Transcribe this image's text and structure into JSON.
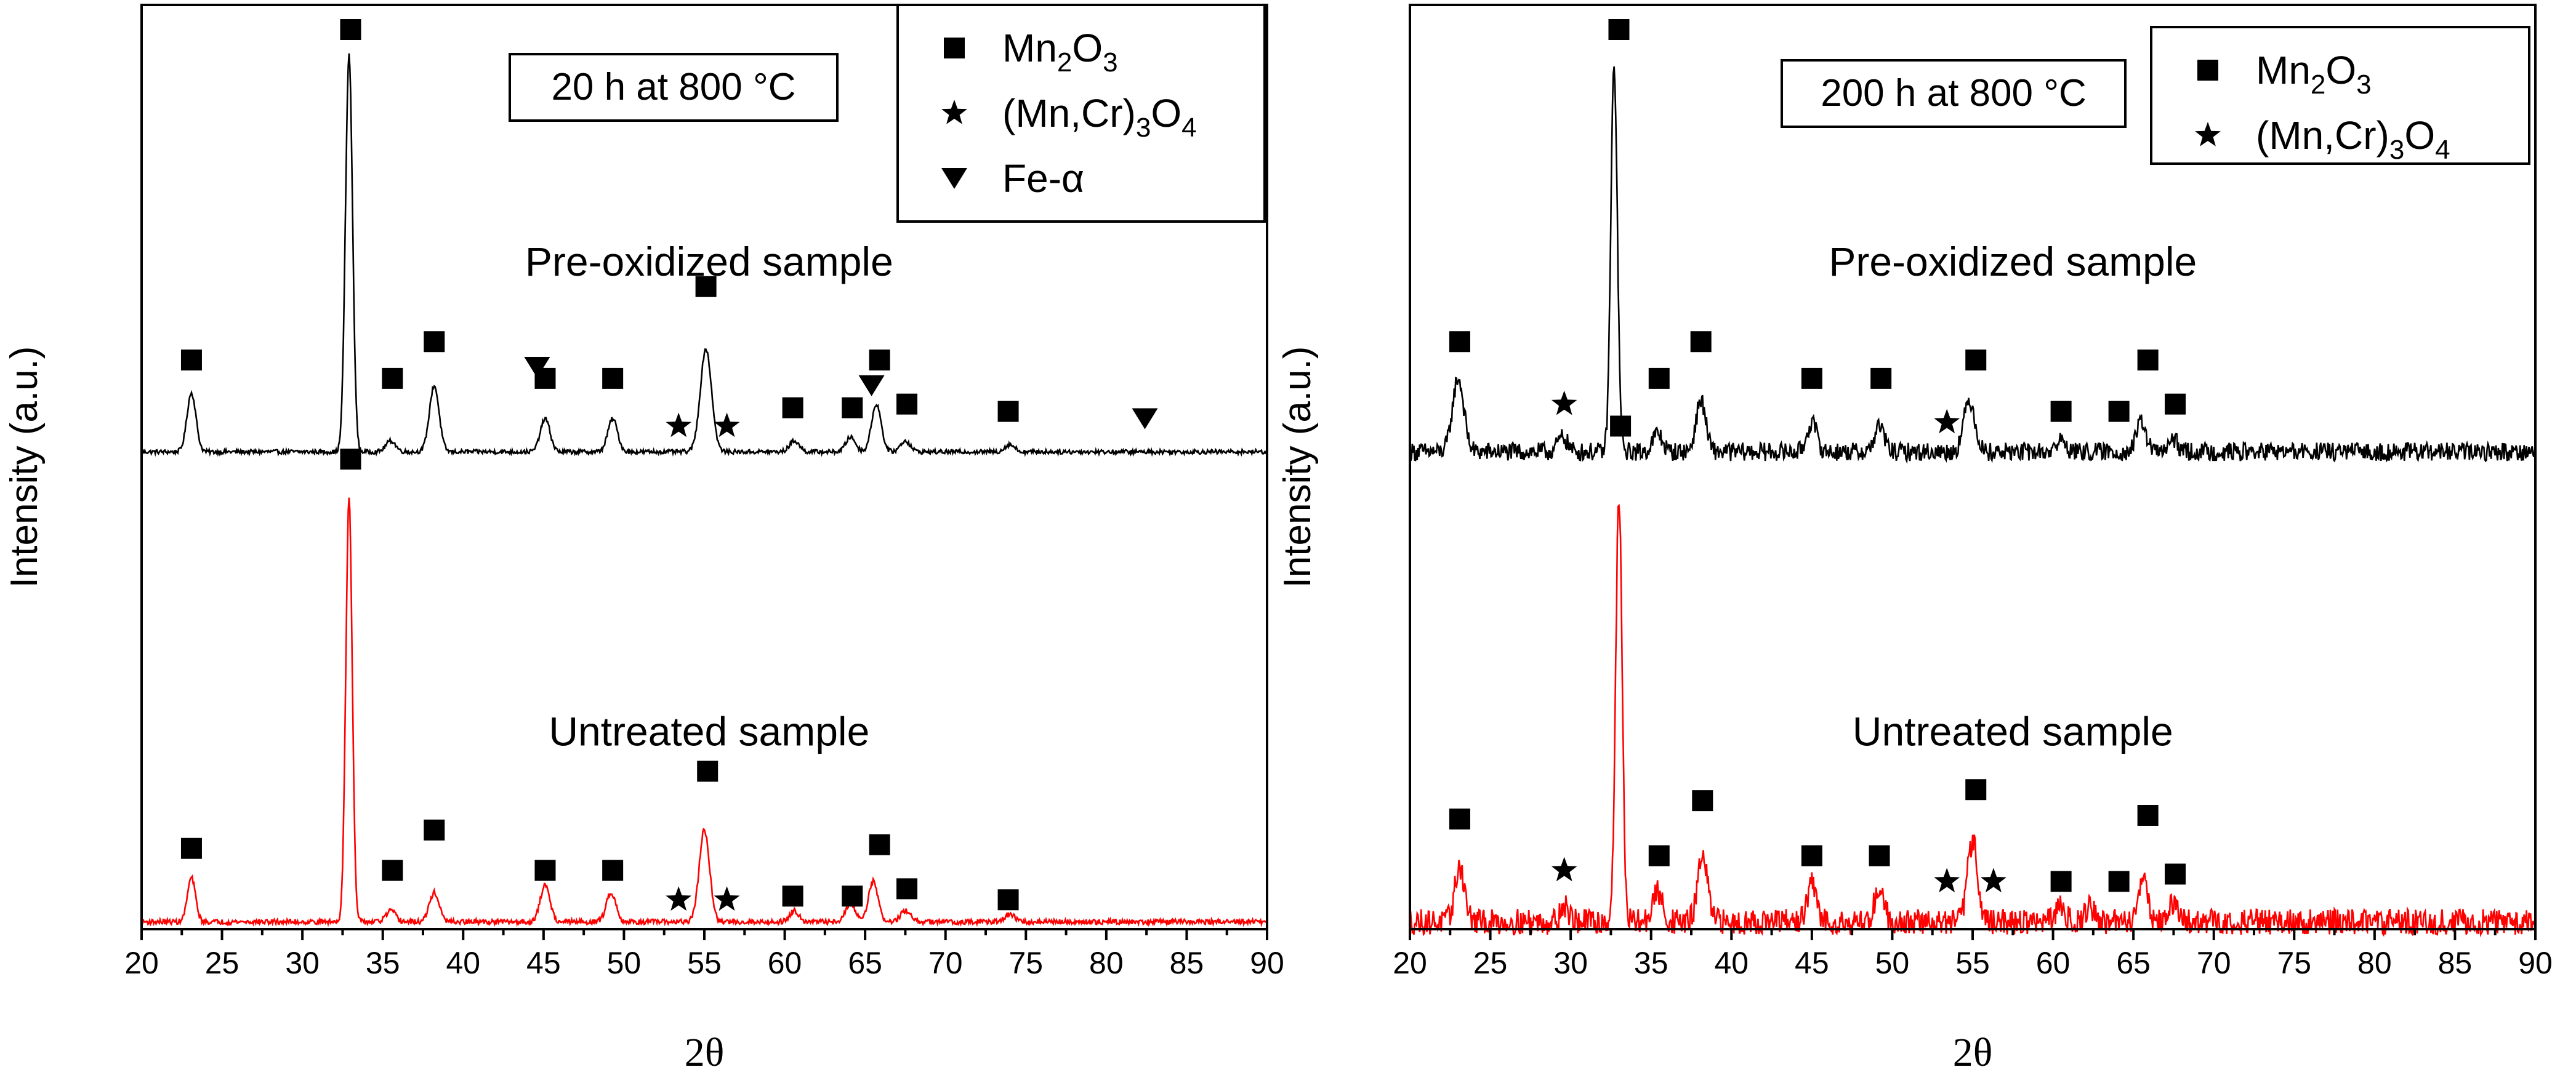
{
  "chart_data": [
    {
      "type": "line",
      "panel": "left",
      "title_box": "20 h at 800 °C",
      "xlabel": "2θ",
      "ylabel": "Intensity (a.u.)",
      "xlim": [
        20,
        90
      ],
      "ylim": [
        0,
        2.45
      ],
      "xticks": [
        "20",
        "25",
        "30",
        "35",
        "40",
        "45",
        "50",
        "55",
        "60",
        "65",
        "70",
        "75",
        "80",
        "85",
        "90"
      ],
      "legend": [
        {
          "symbol": "square",
          "label_base": "Mn",
          "sub1": "2",
          "label_mid": "O",
          "sub2": "3"
        },
        {
          "symbol": "star",
          "label_base": "(Mn,Cr)",
          "sub1": "3",
          "label_mid": "O",
          "sub2": "4"
        },
        {
          "symbol": "down-triangle",
          "label_base": "Fe-α",
          "sub1": "",
          "label_mid": "",
          "sub2": ""
        }
      ],
      "series": [
        {
          "name": "Pre-oxidized sample",
          "color": "#000000",
          "baseline": 1.3,
          "noise": 0.006,
          "label_x": 55.3,
          "label_y": 1.78,
          "peaks": [
            {
              "x": 23.1,
              "h": 0.16,
              "w": 0.28
            },
            {
              "x": 32.9,
              "h": 1.08,
              "w": 0.22
            },
            {
              "x": 35.5,
              "h": 0.03,
              "w": 0.3
            },
            {
              "x": 38.2,
              "h": 0.18,
              "w": 0.3
            },
            {
              "x": 45.1,
              "h": 0.09,
              "w": 0.3
            },
            {
              "x": 49.3,
              "h": 0.09,
              "w": 0.3
            },
            {
              "x": 55.1,
              "h": 0.28,
              "w": 0.35
            },
            {
              "x": 60.6,
              "h": 0.03,
              "w": 0.3
            },
            {
              "x": 64.1,
              "h": 0.04,
              "w": 0.3
            },
            {
              "x": 65.7,
              "h": 0.13,
              "w": 0.3
            },
            {
              "x": 67.5,
              "h": 0.03,
              "w": 0.3
            },
            {
              "x": 74.0,
              "h": 0.02,
              "w": 0.3
            }
          ],
          "markers": [
            {
              "type": "square",
              "x": 23.1,
              "y": 1.55
            },
            {
              "type": "square",
              "x": 33.0,
              "y": 2.45
            },
            {
              "type": "square",
              "x": 35.6,
              "y": 1.5
            },
            {
              "type": "square",
              "x": 38.2,
              "y": 1.6
            },
            {
              "type": "triangle",
              "x": 44.6,
              "y": 1.53
            },
            {
              "type": "square",
              "x": 45.1,
              "y": 1.5
            },
            {
              "type": "square",
              "x": 49.3,
              "y": 1.5
            },
            {
              "type": "star",
              "x": 53.4,
              "y": 1.37
            },
            {
              "type": "square",
              "x": 55.1,
              "y": 1.75
            },
            {
              "type": "star",
              "x": 56.4,
              "y": 1.37
            },
            {
              "type": "square",
              "x": 60.5,
              "y": 1.42
            },
            {
              "type": "square",
              "x": 64.2,
              "y": 1.42
            },
            {
              "type": "triangle",
              "x": 65.4,
              "y": 1.48
            },
            {
              "type": "square",
              "x": 65.9,
              "y": 1.55
            },
            {
              "type": "square",
              "x": 67.6,
              "y": 1.43
            },
            {
              "type": "square",
              "x": 73.9,
              "y": 1.41
            },
            {
              "type": "triangle",
              "x": 82.4,
              "y": 1.39
            }
          ]
        },
        {
          "name": "Untreated sample",
          "color": "#ff0000",
          "baseline": 0.02,
          "noise": 0.007,
          "label_x": 55.3,
          "label_y": 0.5,
          "peaks": [
            {
              "x": 23.1,
              "h": 0.12,
              "w": 0.25
            },
            {
              "x": 32.9,
              "h": 1.15,
              "w": 0.2
            },
            {
              "x": 35.5,
              "h": 0.03,
              "w": 0.3
            },
            {
              "x": 38.2,
              "h": 0.08,
              "w": 0.3
            },
            {
              "x": 45.1,
              "h": 0.1,
              "w": 0.3
            },
            {
              "x": 49.2,
              "h": 0.08,
              "w": 0.3
            },
            {
              "x": 55.0,
              "h": 0.25,
              "w": 0.32
            },
            {
              "x": 60.6,
              "h": 0.03,
              "w": 0.3
            },
            {
              "x": 64.1,
              "h": 0.05,
              "w": 0.3
            },
            {
              "x": 65.5,
              "h": 0.11,
              "w": 0.3
            },
            {
              "x": 67.5,
              "h": 0.03,
              "w": 0.3
            },
            {
              "x": 74.0,
              "h": 0.02,
              "w": 0.3
            }
          ],
          "markers": [
            {
              "type": "square",
              "x": 23.1,
              "y": 0.22
            },
            {
              "type": "square",
              "x": 33.0,
              "y": 1.28
            },
            {
              "type": "square",
              "x": 35.6,
              "y": 0.16
            },
            {
              "type": "square",
              "x": 38.2,
              "y": 0.27
            },
            {
              "type": "square",
              "x": 45.1,
              "y": 0.16
            },
            {
              "type": "square",
              "x": 49.3,
              "y": 0.16
            },
            {
              "type": "star",
              "x": 53.4,
              "y": 0.08
            },
            {
              "type": "square",
              "x": 55.2,
              "y": 0.43
            },
            {
              "type": "star",
              "x": 56.4,
              "y": 0.08
            },
            {
              "type": "square",
              "x": 60.5,
              "y": 0.09
            },
            {
              "type": "square",
              "x": 64.2,
              "y": 0.09
            },
            {
              "type": "square",
              "x": 65.9,
              "y": 0.23
            },
            {
              "type": "square",
              "x": 67.6,
              "y": 0.11
            },
            {
              "type": "square",
              "x": 73.9,
              "y": 0.08
            }
          ]
        }
      ]
    },
    {
      "type": "line",
      "panel": "right",
      "title_box": "200 h at 800 °C",
      "xlabel": "2θ",
      "ylabel": "Intensity (a.u.)",
      "xlim": [
        20,
        90
      ],
      "ylim": [
        0,
        2.45
      ],
      "xticks": [
        "20",
        "25",
        "30",
        "35",
        "40",
        "45",
        "50",
        "55",
        "60",
        "65",
        "70",
        "75",
        "80",
        "85",
        "90"
      ],
      "legend": [
        {
          "symbol": "square",
          "label_base": "Mn",
          "sub1": "2",
          "label_mid": "O",
          "sub2": "3"
        },
        {
          "symbol": "star",
          "label_base": "(Mn,Cr)",
          "sub1": "3",
          "label_mid": "O",
          "sub2": "4"
        }
      ],
      "series": [
        {
          "name": "Pre-oxidized sample",
          "color": "#000000",
          "baseline": 1.3,
          "noise": 0.025,
          "label_x": 57.5,
          "label_y": 1.78,
          "peaks": [
            {
              "x": 23.0,
              "h": 0.2,
              "w": 0.35
            },
            {
              "x": 29.5,
              "h": 0.04,
              "w": 0.3
            },
            {
              "x": 32.7,
              "h": 1.05,
              "w": 0.2
            },
            {
              "x": 35.4,
              "h": 0.05,
              "w": 0.3
            },
            {
              "x": 38.1,
              "h": 0.14,
              "w": 0.3
            },
            {
              "x": 45.0,
              "h": 0.08,
              "w": 0.3
            },
            {
              "x": 49.2,
              "h": 0.07,
              "w": 0.3
            },
            {
              "x": 54.8,
              "h": 0.14,
              "w": 0.35
            },
            {
              "x": 60.5,
              "h": 0.03,
              "w": 0.3
            },
            {
              "x": 65.5,
              "h": 0.08,
              "w": 0.3
            },
            {
              "x": 67.5,
              "h": 0.03,
              "w": 0.3
            }
          ],
          "markers": [
            {
              "type": "square",
              "x": 23.1,
              "y": 1.6
            },
            {
              "type": "star",
              "x": 29.6,
              "y": 1.43
            },
            {
              "type": "square",
              "x": 33.0,
              "y": 2.45
            },
            {
              "type": "square",
              "x": 35.5,
              "y": 1.5
            },
            {
              "type": "square",
              "x": 38.1,
              "y": 1.6
            },
            {
              "type": "square",
              "x": 45.0,
              "y": 1.5
            },
            {
              "type": "square",
              "x": 49.3,
              "y": 1.5
            },
            {
              "type": "star",
              "x": 53.4,
              "y": 1.38
            },
            {
              "type": "square",
              "x": 55.2,
              "y": 1.55
            },
            {
              "type": "square",
              "x": 60.5,
              "y": 1.41
            },
            {
              "type": "square",
              "x": 64.1,
              "y": 1.41
            },
            {
              "type": "square",
              "x": 65.9,
              "y": 1.55
            },
            {
              "type": "square",
              "x": 67.6,
              "y": 1.43
            }
          ]
        },
        {
          "name": "Untreated sample",
          "color": "#ff0000",
          "baseline": 0.02,
          "noise": 0.035,
          "label_x": 57.5,
          "label_y": 0.5,
          "peaks": [
            {
              "x": 23.1,
              "h": 0.15,
              "w": 0.3
            },
            {
              "x": 29.6,
              "h": 0.04,
              "w": 0.3
            },
            {
              "x": 33.0,
              "h": 1.15,
              "w": 0.2
            },
            {
              "x": 35.4,
              "h": 0.08,
              "w": 0.3
            },
            {
              "x": 38.2,
              "h": 0.18,
              "w": 0.3
            },
            {
              "x": 45.0,
              "h": 0.1,
              "w": 0.3
            },
            {
              "x": 49.2,
              "h": 0.09,
              "w": 0.3
            },
            {
              "x": 55.0,
              "h": 0.22,
              "w": 0.32
            },
            {
              "x": 60.5,
              "h": 0.04,
              "w": 0.3
            },
            {
              "x": 62.3,
              "h": 0.04,
              "w": 0.3
            },
            {
              "x": 65.6,
              "h": 0.12,
              "w": 0.3
            },
            {
              "x": 67.5,
              "h": 0.05,
              "w": 0.3
            }
          ],
          "markers": [
            {
              "type": "square",
              "x": 23.1,
              "y": 0.3
            },
            {
              "type": "star",
              "x": 29.6,
              "y": 0.16
            },
            {
              "type": "square",
              "x": 33.1,
              "y": 1.37
            },
            {
              "type": "square",
              "x": 35.5,
              "y": 0.2
            },
            {
              "type": "square",
              "x": 38.2,
              "y": 0.35
            },
            {
              "type": "square",
              "x": 45.0,
              "y": 0.2
            },
            {
              "type": "square",
              "x": 49.2,
              "y": 0.2
            },
            {
              "type": "star",
              "x": 53.4,
              "y": 0.13
            },
            {
              "type": "square",
              "x": 55.2,
              "y": 0.38
            },
            {
              "type": "star",
              "x": 56.3,
              "y": 0.13
            },
            {
              "type": "square",
              "x": 60.5,
              "y": 0.13
            },
            {
              "type": "square",
              "x": 64.1,
              "y": 0.13
            },
            {
              "type": "square",
              "x": 65.9,
              "y": 0.31
            },
            {
              "type": "square",
              "x": 67.6,
              "y": 0.15
            }
          ]
        }
      ]
    }
  ]
}
